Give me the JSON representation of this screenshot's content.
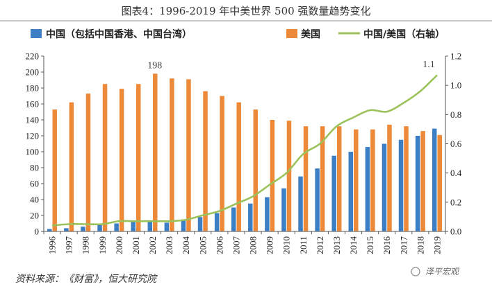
{
  "chart_data": {
    "type": "bar",
    "title": "图表4：1996-2019 年中美世界 500 强数量趋势变化",
    "categories": [
      "1996",
      "1997",
      "1998",
      "1999",
      "2000",
      "2001",
      "2002",
      "2003",
      "2004",
      "2005",
      "2006",
      "2007",
      "2008",
      "2009",
      "2010",
      "2011",
      "2012",
      "2013",
      "2014",
      "2015",
      "2016",
      "2017",
      "2018",
      "2019"
    ],
    "series": [
      {
        "name": "中国（包括中国香港、中国台湾）",
        "type": "bar",
        "axis": "left",
        "color": "#3d7fc4",
        "values": [
          3,
          4,
          6,
          8,
          10,
          12,
          12,
          11,
          15,
          18,
          23,
          30,
          35,
          43,
          54,
          69,
          79,
          95,
          100,
          106,
          110,
          115,
          120,
          129
        ]
      },
      {
        "name": "美国",
        "type": "bar",
        "axis": "left",
        "color": "#ed8a3a",
        "values": [
          153,
          162,
          173,
          185,
          179,
          185,
          198,
          192,
          191,
          176,
          170,
          162,
          153,
          140,
          139,
          132,
          132,
          132,
          128,
          128,
          134,
          132,
          126,
          121
        ]
      },
      {
        "name": "中国/美国（右轴）",
        "type": "line",
        "axis": "right",
        "color": "#9bc25a",
        "values": [
          0.04,
          0.05,
          0.05,
          0.05,
          0.07,
          0.07,
          0.07,
          0.07,
          0.08,
          0.11,
          0.14,
          0.19,
          0.24,
          0.32,
          0.4,
          0.53,
          0.6,
          0.72,
          0.78,
          0.83,
          0.82,
          0.88,
          0.96,
          1.07
        ]
      }
    ],
    "y_left": {
      "min": 0,
      "max": 220,
      "step": 20,
      "ticks": [
        "0",
        "20",
        "40",
        "60",
        "80",
        "100",
        "120",
        "140",
        "160",
        "180",
        "200",
        "220"
      ]
    },
    "y_right": {
      "min": 0,
      "max": 1.2,
      "step": 0.2,
      "ticks": [
        "0.0",
        "0.2",
        "0.4",
        "0.6",
        "0.8",
        "1.0",
        "1.2"
      ]
    },
    "annotations": [
      {
        "text": "198",
        "category": "2002",
        "value": 198,
        "axis": "left"
      },
      {
        "text": "1.1",
        "category": "2019",
        "value": 1.1,
        "axis": "right"
      }
    ],
    "source": "资料来源：《财富》，恒大研究院",
    "watermark": "泽平宏观"
  }
}
